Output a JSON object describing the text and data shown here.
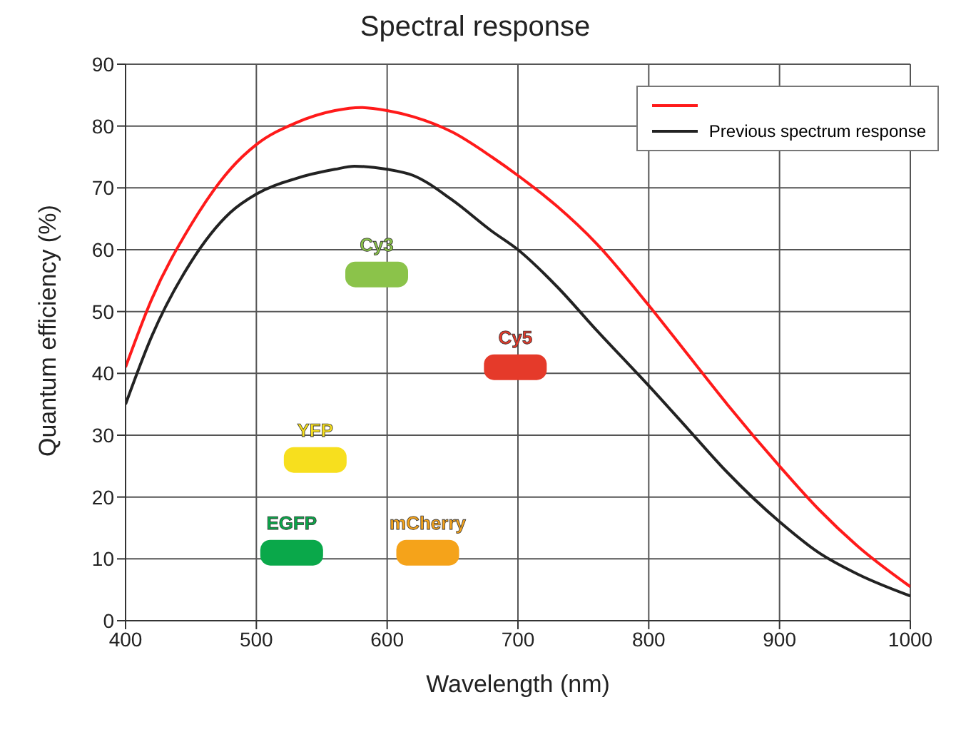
{
  "chart_data": {
    "type": "line",
    "title": "Spectral response",
    "xlabel": "Wavelength (nm)",
    "ylabel": "Quantum efficiency (%)",
    "xlim": [
      400,
      1000
    ],
    "xticks": [
      400,
      500,
      600,
      700,
      800,
      900,
      1000
    ],
    "ylim": [
      0,
      90
    ],
    "yticks": [
      0,
      10,
      20,
      30,
      40,
      50,
      60,
      70,
      80,
      90
    ],
    "grid": true,
    "legend": "top right",
    "series": [
      {
        "color": "#ff1a1a",
        "x": [
          400,
          420,
          450,
          480,
          500,
          530,
          560,
          580,
          600,
          620,
          650,
          680,
          700,
          730,
          760,
          800,
          830,
          860,
          900,
          930,
          960,
          1000
        ],
        "values": [
          41,
          52,
          64,
          73,
          77,
          80.5,
          82.5,
          83,
          82.5,
          81.5,
          79,
          75,
          72,
          67,
          61,
          51,
          43,
          35,
          25,
          18,
          12,
          5.5
        ]
      },
      {
        "name": "Previous spectrum response",
        "color": "#222222",
        "x": [
          400,
          420,
          450,
          480,
          500,
          530,
          560,
          575,
          600,
          620,
          650,
          680,
          700,
          730,
          760,
          800,
          830,
          860,
          900,
          930,
          960,
          1000
        ],
        "values": [
          35,
          46,
          58,
          66,
          69,
          71.5,
          73,
          73.5,
          73,
          72,
          68,
          63,
          60,
          54,
          47,
          38,
          31,
          24,
          16,
          11,
          7.5,
          4
        ]
      },
      {
        "type": "scatter",
        "marker": "square",
        "name": "Cy3",
        "color": "#8bc34a",
        "x": [
          592
        ],
        "values": [
          56
        ]
      },
      {
        "type": "scatter",
        "marker": "square",
        "name": "Cy5",
        "color": "#e53a2a",
        "x": [
          698
        ],
        "values": [
          41
        ]
      },
      {
        "type": "scatter",
        "marker": "square",
        "name": "YFP",
        "color": "#f7df1e",
        "x": [
          545
        ],
        "values": [
          26
        ]
      },
      {
        "type": "scatter",
        "marker": "square",
        "name": "EGFP",
        "color": "#0aa84a",
        "x": [
          527
        ],
        "values": [
          11
        ]
      },
      {
        "type": "scatter",
        "marker": "square",
        "name": "mCherry",
        "color": "#f5a31a",
        "x": [
          631
        ],
        "values": [
          11
        ]
      }
    ]
  }
}
